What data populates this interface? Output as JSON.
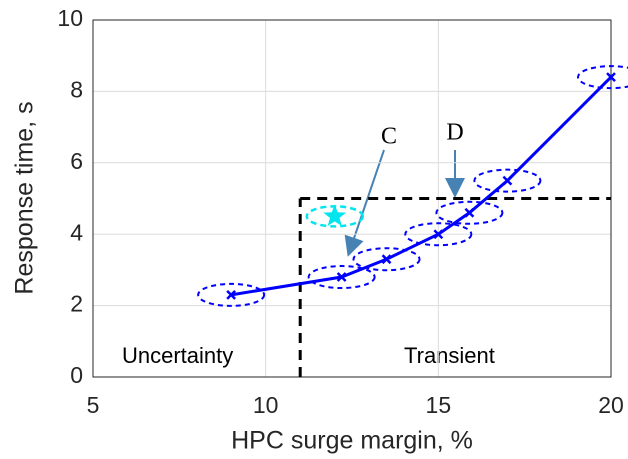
{
  "chart_data": {
    "type": "line",
    "xlabel": "HPC surge margin, %",
    "ylabel": "Response time, s",
    "x": [
      9,
      12.2,
      13.5,
      15,
      15.9,
      17,
      20
    ],
    "values": [
      2.3,
      2.8,
      3.3,
      4.0,
      4.6,
      5.5,
      8.4
    ],
    "color": "#0000ff",
    "highlight_point": {
      "x": 12,
      "y": 4.5,
      "color": "#00e5ee"
    },
    "threshold": {
      "x": 11,
      "y": 5
    },
    "xlim": [
      5,
      20
    ],
    "xticks": [
      5,
      10,
      15,
      20
    ],
    "ylim": [
      0,
      10
    ],
    "yticks": [
      0,
      2,
      4,
      6,
      8,
      10
    ],
    "grid": true,
    "annotations": {
      "uncertainty": "Uncertainty",
      "transient": "Transient",
      "c": "C",
      "d": "D"
    }
  }
}
